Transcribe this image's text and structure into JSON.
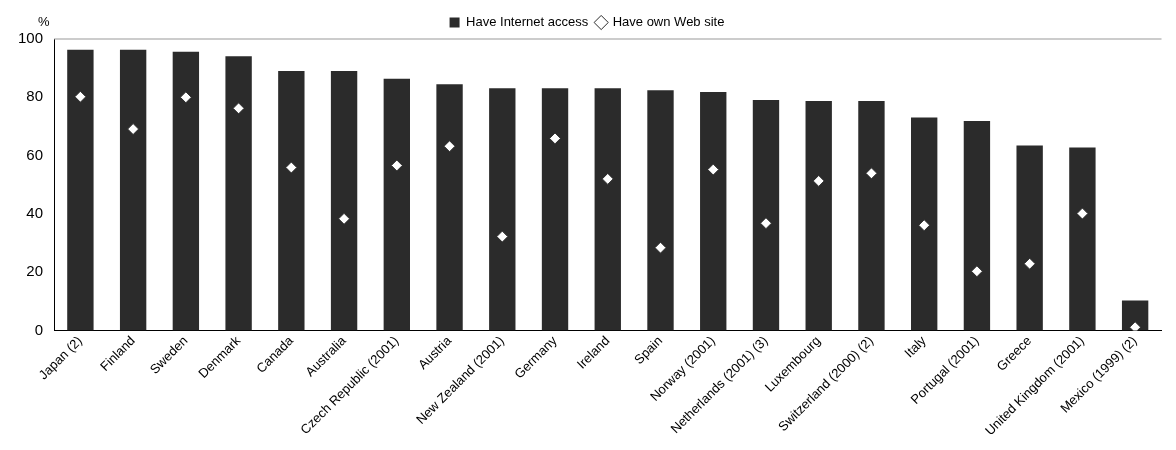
{
  "chart_data": {
    "type": "bar",
    "ylabel": "%",
    "categories": [
      "Japan (2)",
      "Finland",
      "Sweden",
      "Denmark",
      "Canada",
      "Australia",
      "Czech Republic (2001)",
      "Austria",
      "New Zealand (2001)",
      "Germany",
      "Ireland",
      "Spain",
      "Norway (2001)",
      "Netherlands (2001) (3)",
      "Luxembourg",
      "Switzerland (2000) (2)",
      "Italy",
      "Portugal (2001)",
      "Greece",
      "United Kingdom (2001)",
      "Mexico (1999) (2)"
    ],
    "series": [
      {
        "name": "Have Internet access",
        "type": "bar",
        "color": "#2b2b2b",
        "values": [
          96.3,
          96.3,
          95.6,
          94.1,
          89,
          89,
          86.4,
          84.5,
          83.1,
          83.1,
          83.1,
          82.4,
          81.8,
          79.1,
          78.7,
          78.7,
          73.1,
          71.9,
          63.5,
          62.8,
          10.3
        ]
      },
      {
        "name": "Have own Web site",
        "type": "scatter",
        "color": "#ffffff",
        "marker": "diamond",
        "values": [
          80.2,
          69.1,
          80,
          76.2,
          55.9,
          38.3,
          56.6,
          63.2,
          32.2,
          65.9,
          52,
          28.4,
          55.2,
          36.8,
          51.3,
          53.9,
          36.1,
          20.3,
          22.9,
          40.1,
          1.1
        ]
      }
    ],
    "ylim": [
      0,
      100
    ],
    "yticks": [
      0,
      20,
      40,
      60,
      80,
      100
    ],
    "grid": false,
    "legend": "top"
  }
}
